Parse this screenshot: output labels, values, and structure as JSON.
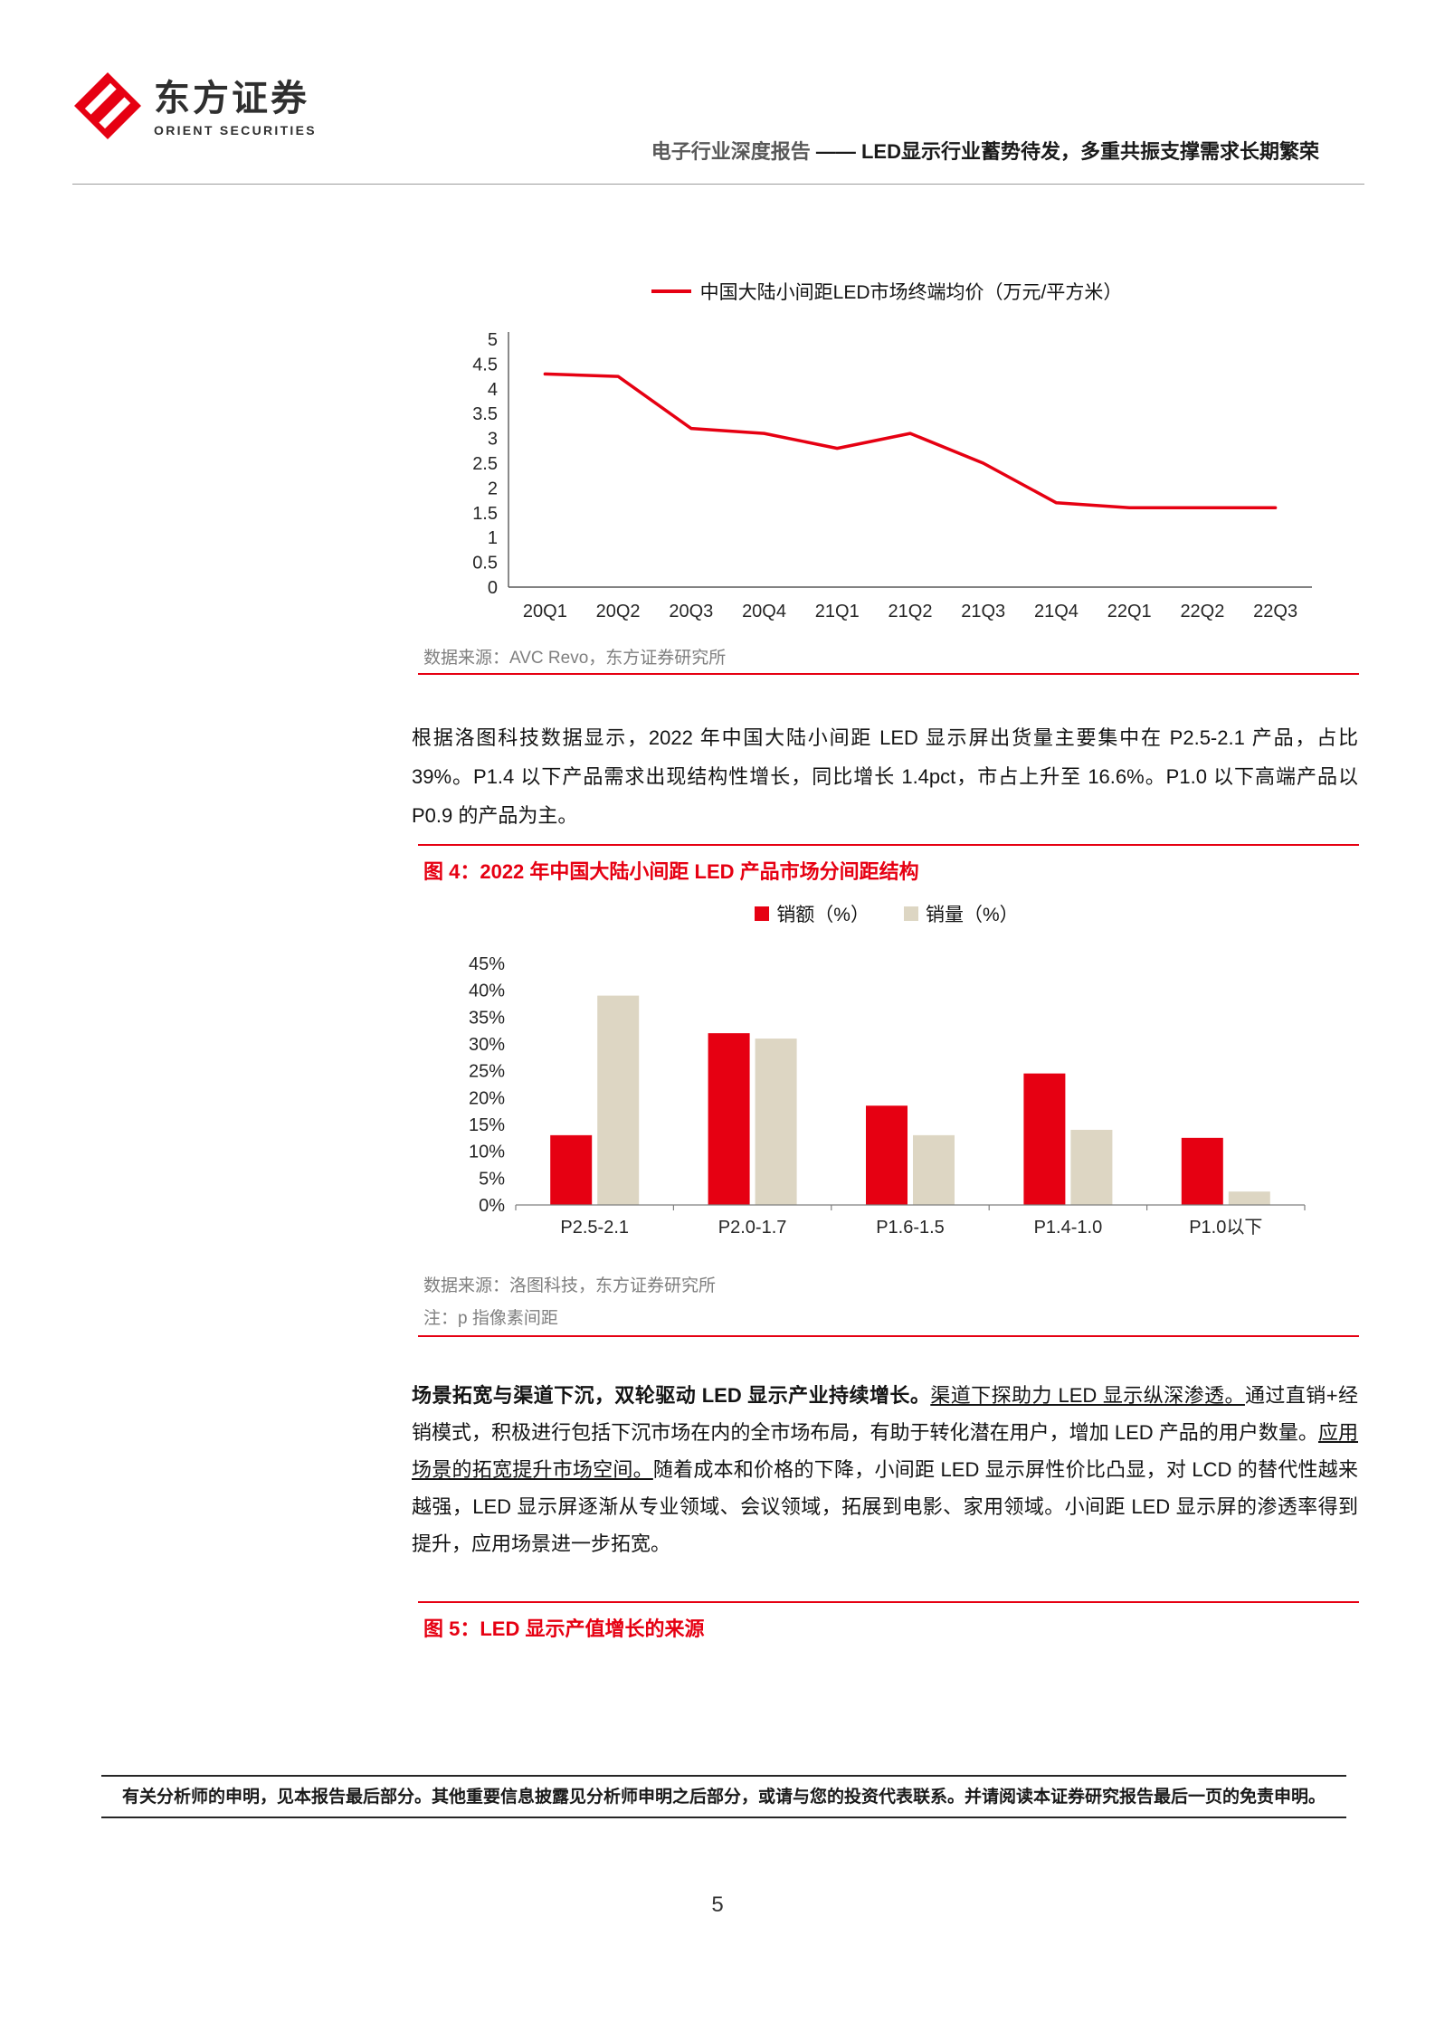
{
  "header": {
    "logo_cn": "东方证券",
    "logo_en": "ORIENT SECURITIES",
    "report_type": "电子行业深度报告",
    "title_rest": " —— LED显示行业蓄势待发，多重共振支撑需求长期繁荣"
  },
  "chart_data": [
    {
      "type": "line",
      "title_legend": "中国大陆小间距LED市场终端均价（万元/平方米）",
      "categories": [
        "20Q1",
        "20Q2",
        "20Q3",
        "20Q4",
        "21Q1",
        "21Q2",
        "21Q3",
        "21Q4",
        "22Q1",
        "22Q2",
        "22Q3"
      ],
      "values": [
        4.3,
        4.25,
        3.2,
        3.1,
        2.8,
        3.1,
        2.5,
        1.7,
        1.6,
        1.6,
        1.6
      ],
      "ylim": [
        0,
        5
      ],
      "ytick_step": 0.5,
      "ytick_suffix": "",
      "line_color": "#e60012",
      "grid": false,
      "legend_position": "top",
      "source": "数据来源：AVC Revo，东方证券研究所"
    },
    {
      "type": "bar",
      "categories": [
        "P2.5-2.1",
        "P2.0-1.7",
        "P1.6-1.5",
        "P1.4-1.0",
        "P1.0以下"
      ],
      "series": [
        {
          "name": "销额（%）",
          "color": "#e60012",
          "values": [
            13,
            32,
            18.5,
            24.5,
            12.5
          ]
        },
        {
          "name": "销量（%）",
          "color": "#ddd6c3",
          "values": [
            39,
            31,
            13,
            14,
            2.5
          ]
        }
      ],
      "ylim": [
        0,
        45
      ],
      "ytick_step": 5,
      "ytick_suffix": "%",
      "grid": false,
      "legend_position": "top",
      "source": "数据来源：洛图科技，东方证券研究所",
      "note": "注：p 指像素间距"
    }
  ],
  "figures": {
    "fig4_title": "图 4：2022 年中国大陆小间距 LED 产品市场分间距结构",
    "fig5_title": "图 5：LED 显示产值增长的来源"
  },
  "paragraphs": {
    "p1": "根据洛图科技数据显示，2022 年中国大陆小间距 LED 显示屏出货量主要集中在 P2.5-2.1 产品，占比 39%。P1.4 以下产品需求出现结构性增长，同比增长 1.4pct，市占上升至 16.6%。P1.0 以下高端产品以 P0.9 的产品为主。",
    "p2_segments": [
      {
        "text": "场景拓宽与渠道下沉，双轮驱动 LED 显示产业持续增长。",
        "style": "bold"
      },
      {
        "text": "渠道下探助力 LED 显示纵深渗透。",
        "style": "underline"
      },
      {
        "text": "通过直销+经销模式，积极进行包括下沉市场在内的全市场布局，有助于转化潜在用户，增加 LED 产品的用户数量。",
        "style": "normal"
      },
      {
        "text": "应用场景的拓宽提升市场空间。",
        "style": "underline"
      },
      {
        "text": "随着成本和价格的下降，小间距 LED 显示屏性价比凸显，对 LCD 的替代性越来越强，LED 显示屏逐渐从专业领域、会议领域，拓展到电影、家用领域。小间距 LED 显示屏的渗透率得到提升，应用场景进一步拓宽。",
        "style": "normal"
      }
    ]
  },
  "footer": {
    "disclaimer": "有关分析师的申明，见本报告最后部分。其他重要信息披露见分析师申明之后部分，或请与您的投资代表联系。并请阅读本证券研究报告最后一页的免责申明。",
    "page_number": "5"
  },
  "colors": {
    "brand_red": "#e60012",
    "bar_red": "#e60012",
    "bar_beige": "#ddd6c3",
    "source_gray": "#7f7f7f"
  }
}
